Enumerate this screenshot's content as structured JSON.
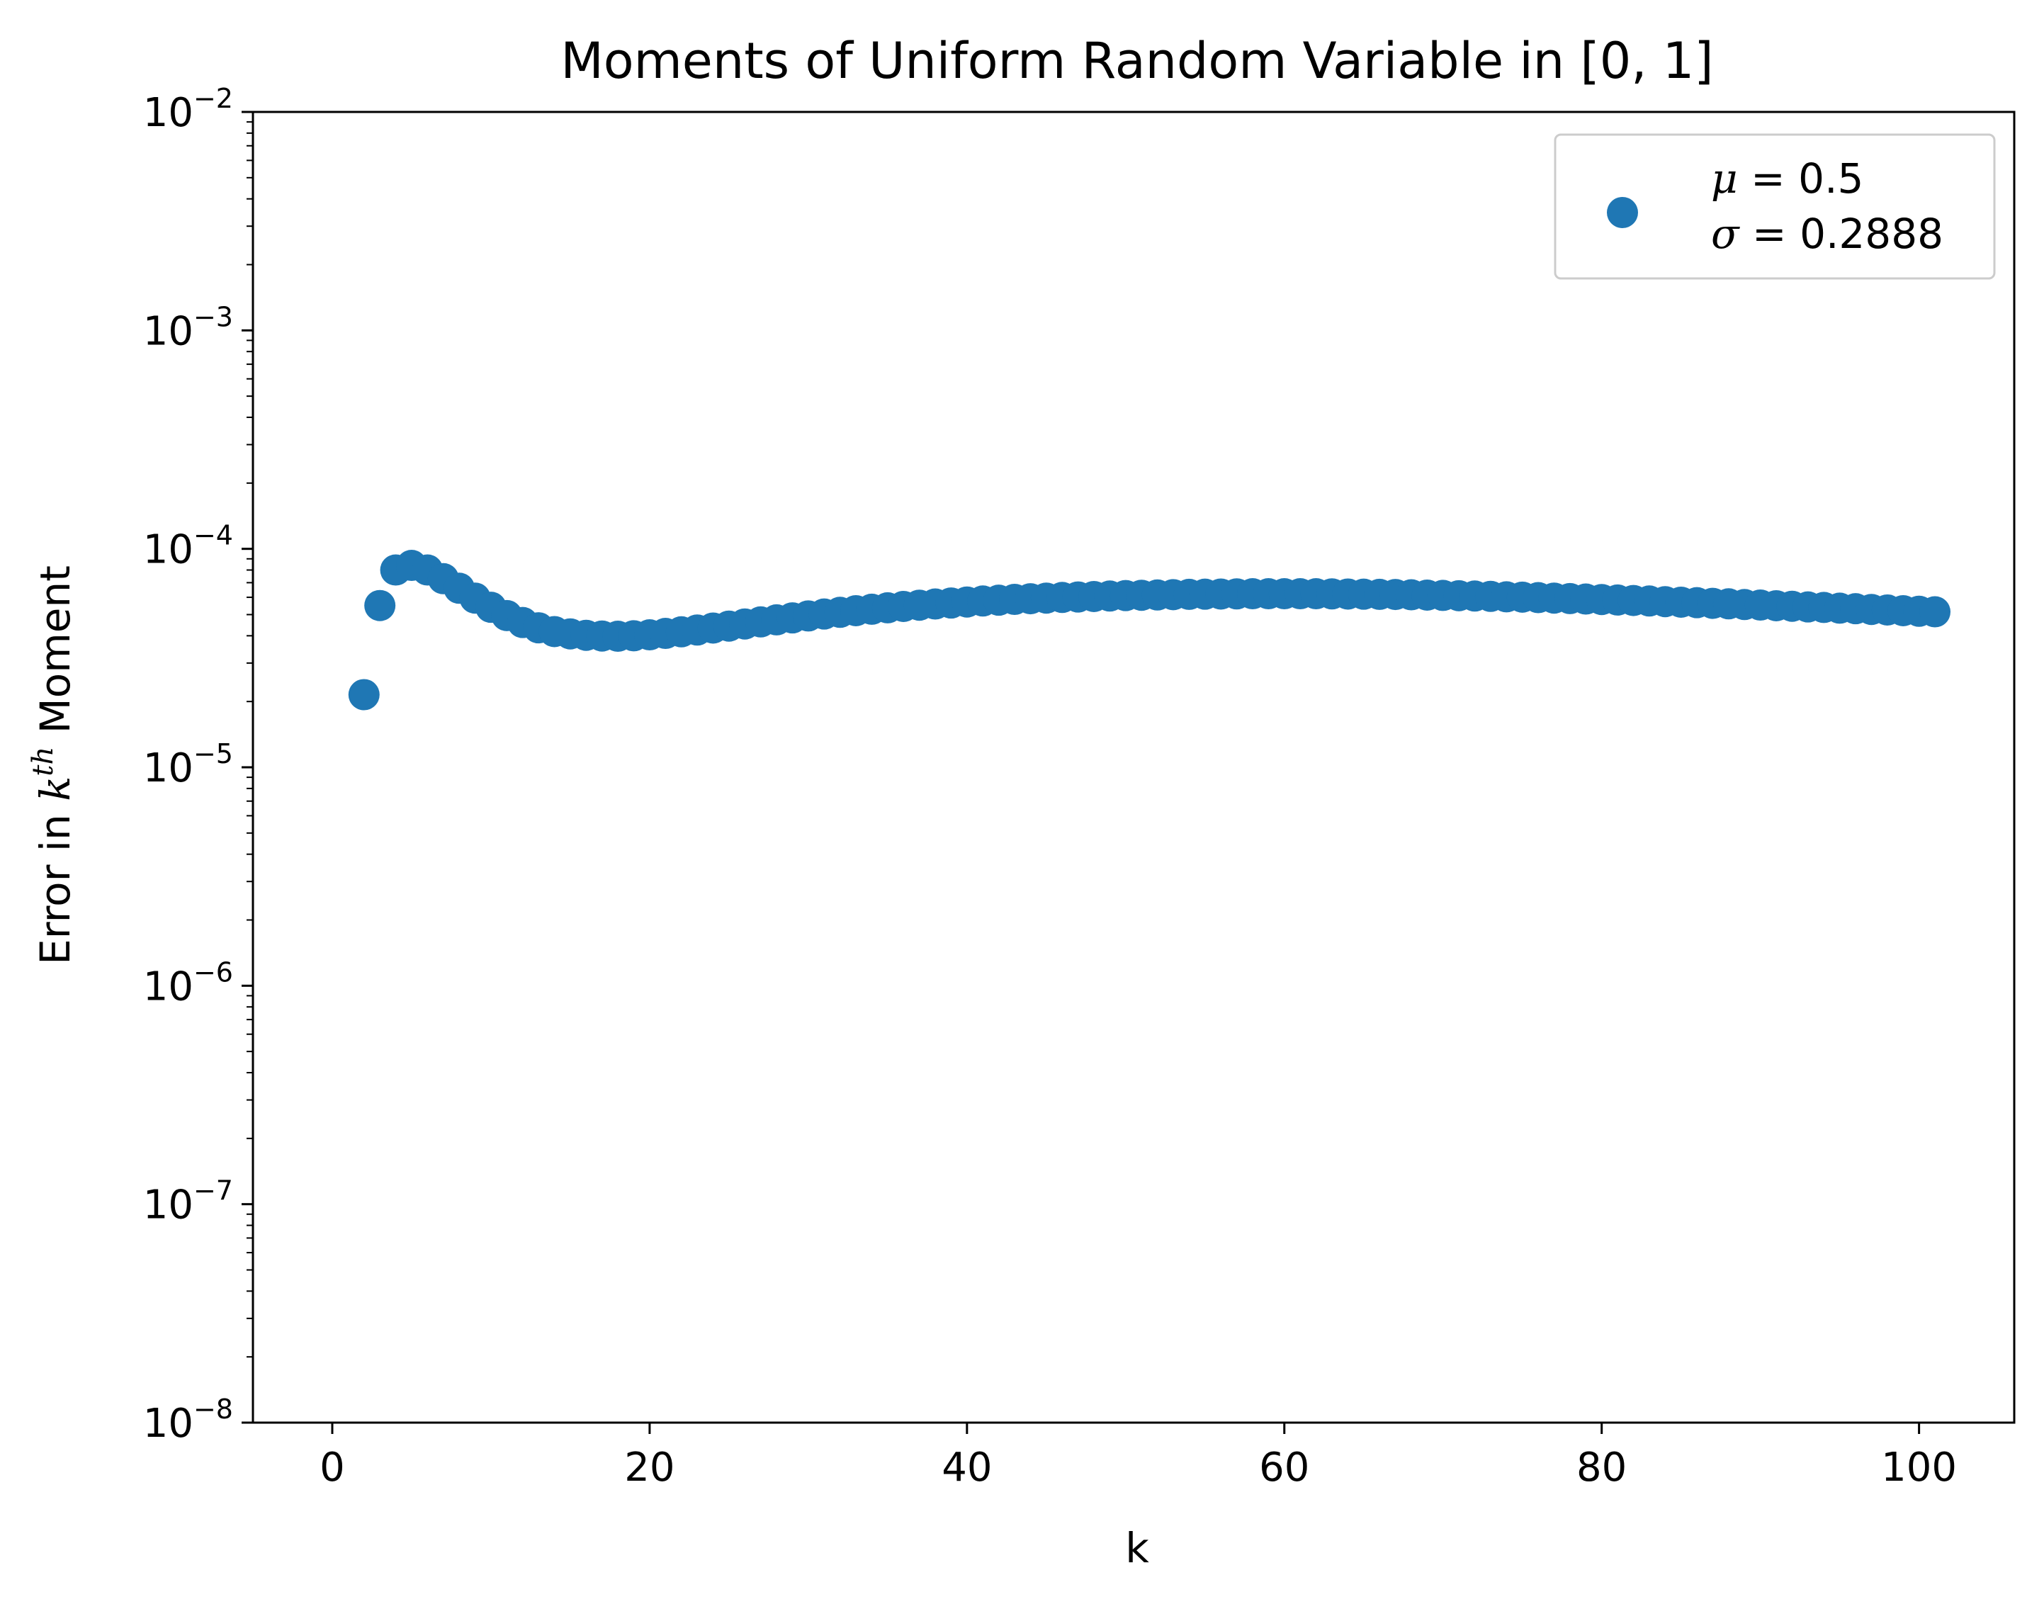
{
  "chart_data": {
    "type": "scatter",
    "title": "Moments of Uniform Random Variable in [0, 1]",
    "xlabel": "k",
    "ylabel": {
      "prefix": "Error in ",
      "var": "k",
      "sup": "th",
      "suffix": " Moment"
    },
    "xlim": [
      -5,
      106
    ],
    "ylim": [
      1e-08,
      0.01
    ],
    "yscale": "log",
    "grid": false,
    "legend_position": "top-right",
    "x_ticks": [
      {
        "value": 0,
        "label": "0"
      },
      {
        "value": 20,
        "label": "20"
      },
      {
        "value": 40,
        "label": "40"
      },
      {
        "value": 60,
        "label": "60"
      },
      {
        "value": 80,
        "label": "80"
      },
      {
        "value": 100,
        "label": "100"
      }
    ],
    "y_ticks": [
      {
        "value": 1e-08,
        "base": "10",
        "exp": "−8"
      },
      {
        "value": 1e-07,
        "base": "10",
        "exp": "−7"
      },
      {
        "value": 1e-06,
        "base": "10",
        "exp": "−6"
      },
      {
        "value": 1e-05,
        "base": "10",
        "exp": "−5"
      },
      {
        "value": 0.0001,
        "base": "10",
        "exp": "−4"
      },
      {
        "value": 0.001,
        "base": "10",
        "exp": "−3"
      },
      {
        "value": 0.01,
        "base": "10",
        "exp": "−2"
      }
    ],
    "series": [
      {
        "color": "#1f77b4",
        "legend_lines": [
          {
            "symbol": "μ",
            "rest": " = 0.5"
          },
          {
            "symbol": "σ",
            "rest": " = 0.2888"
          }
        ],
        "x": [
          2,
          3,
          4,
          5,
          6,
          7,
          8,
          9,
          10,
          11,
          12,
          13,
          14,
          15,
          16,
          17,
          18,
          19,
          20,
          21,
          22,
          23,
          24,
          25,
          26,
          27,
          28,
          29,
          30,
          31,
          32,
          33,
          34,
          35,
          36,
          37,
          38,
          39,
          40,
          41,
          42,
          43,
          44,
          45,
          46,
          47,
          48,
          49,
          50,
          51,
          52,
          53,
          54,
          55,
          56,
          57,
          58,
          59,
          60,
          61,
          62,
          63,
          64,
          65,
          66,
          67,
          68,
          69,
          70,
          71,
          72,
          73,
          74,
          75,
          76,
          77,
          78,
          79,
          80,
          81,
          82,
          83,
          84,
          85,
          86,
          87,
          88,
          89,
          90,
          91,
          92,
          93,
          94,
          95,
          96,
          97,
          98,
          99,
          100,
          101
        ],
        "y": [
          2.15e-05,
          5.5e-05,
          8e-05,
          8.4e-05,
          8e-05,
          7.3e-05,
          6.6e-05,
          5.95e-05,
          5.4e-05,
          4.95e-05,
          4.6e-05,
          4.35e-05,
          4.18e-05,
          4.08e-05,
          4.02e-05,
          3.99e-05,
          3.98e-05,
          4e-05,
          4.04e-05,
          4.1e-05,
          4.17e-05,
          4.25e-05,
          4.34e-05,
          4.43e-05,
          4.53e-05,
          4.63e-05,
          4.73e-05,
          4.83e-05,
          4.93e-05,
          5.03e-05,
          5.12e-05,
          5.21e-05,
          5.29e-05,
          5.37e-05,
          5.45e-05,
          5.52e-05,
          5.59e-05,
          5.65e-05,
          5.71e-05,
          5.77e-05,
          5.82e-05,
          5.87e-05,
          5.91e-05,
          5.95e-05,
          5.99e-05,
          6.02e-05,
          6.05e-05,
          6.08e-05,
          6.11e-05,
          6.13e-05,
          6.15e-05,
          6.17e-05,
          6.19e-05,
          6.2e-05,
          6.21e-05,
          6.22e-05,
          6.23e-05,
          6.23e-05,
          6.23e-05,
          6.23e-05,
          6.23e-05,
          6.22e-05,
          6.21e-05,
          6.2e-05,
          6.19e-05,
          6.18e-05,
          6.16e-05,
          6.14e-05,
          6.12e-05,
          6.1e-05,
          6.08e-05,
          6.06e-05,
          6.03e-05,
          6.01e-05,
          5.98e-05,
          5.95e-05,
          5.92e-05,
          5.89e-05,
          5.86e-05,
          5.83e-05,
          5.8e-05,
          5.77e-05,
          5.73e-05,
          5.7e-05,
          5.67e-05,
          5.63e-05,
          5.6e-05,
          5.56e-05,
          5.53e-05,
          5.49e-05,
          5.46e-05,
          5.42e-05,
          5.39e-05,
          5.35e-05,
          5.32e-05,
          5.28e-05,
          5.25e-05,
          5.21e-05,
          5.18e-05,
          5.15e-05
        ]
      }
    ]
  }
}
